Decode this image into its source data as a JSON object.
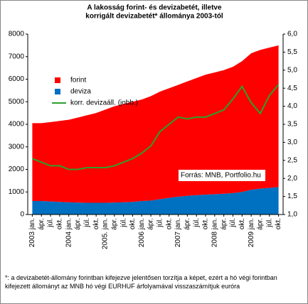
{
  "chart_data": {
    "type": "stacked-area-line",
    "title": [
      "A lakosság forint- és devizabetét, illetve",
      "korrigált devizabetét* állománya 2003-tól"
    ],
    "categories": [
      "2003 jan.",
      "ápr.",
      "júl.",
      "okt.",
      "2004 jan.",
      "ápr.",
      "júl.",
      "okt.",
      "2005. jan.",
      "ápr.",
      "júl.",
      "okt.",
      "2006 jan.",
      "ápr.",
      "júl.",
      "okt.",
      "2007 jan.",
      "ápr.",
      "júl.",
      "okt.",
      "2008 jan.",
      "ápr.",
      "júl.",
      "okt.",
      "2009 jan.",
      "ápr.",
      "júl.",
      "okt."
    ],
    "series": [
      {
        "name": "deviza",
        "color": "#0070c0",
        "values": [
          600,
          600,
          580,
          560,
          540,
          530,
          520,
          520,
          520,
          530,
          540,
          560,
          600,
          620,
          680,
          740,
          790,
          830,
          860,
          880,
          900,
          920,
          950,
          1000,
          1100,
          1150,
          1180,
          1220
        ]
      },
      {
        "name": "forint",
        "color": "#ff0000",
        "values": [
          3450,
          3450,
          3520,
          3590,
          3660,
          3770,
          3880,
          3980,
          4130,
          4270,
          4360,
          4440,
          4500,
          4630,
          4770,
          4860,
          4960,
          5070,
          5190,
          5320,
          5400,
          5480,
          5600,
          5800,
          6050,
          6150,
          6220,
          6280
        ]
      },
      {
        "name": "korr. devizaáll. (jobb.)",
        "color": "#2ca02c",
        "axis": "y2",
        "values": [
          2.55,
          2.45,
          2.35,
          2.35,
          2.25,
          2.25,
          2.3,
          2.3,
          2.3,
          2.35,
          2.45,
          2.55,
          2.7,
          2.9,
          3.3,
          3.5,
          3.7,
          3.65,
          3.7,
          3.7,
          3.8,
          3.9,
          4.2,
          4.55,
          4.1,
          3.8,
          4.3,
          4.6
        ]
      }
    ],
    "ylim": [
      0,
      8000
    ],
    "yticks": [
      0,
      1000,
      2000,
      3000,
      4000,
      5000,
      6000,
      7000,
      8000
    ],
    "y2lim": [
      1,
      6
    ],
    "y2ticks": [
      {
        "value": 1,
        "label": "1,0"
      },
      {
        "value": 1.5,
        "label": "1,5"
      },
      {
        "value": 2,
        "label": "2,0"
      },
      {
        "value": 2.5,
        "label": "2,5"
      },
      {
        "value": 3,
        "label": "3,0"
      },
      {
        "value": 3.5,
        "label": "3,5"
      },
      {
        "value": 4,
        "label": "4,0"
      },
      {
        "value": 4.5,
        "label": "4,5"
      },
      {
        "value": 5,
        "label": "5,0"
      },
      {
        "value": 5.5,
        "label": "5,5"
      },
      {
        "value": 6,
        "label": "6,0"
      }
    ],
    "source": "Forrás: MNB, Portfolio.hu",
    "footnote": "*: a devizabetét-állomány forintban kifejezve jelentősen torzítja a képet, ezért a hó végi forintban kifejezett állományt az MNB hó végi EURHUF árfolyamával visszaszámítjuk euróra"
  }
}
